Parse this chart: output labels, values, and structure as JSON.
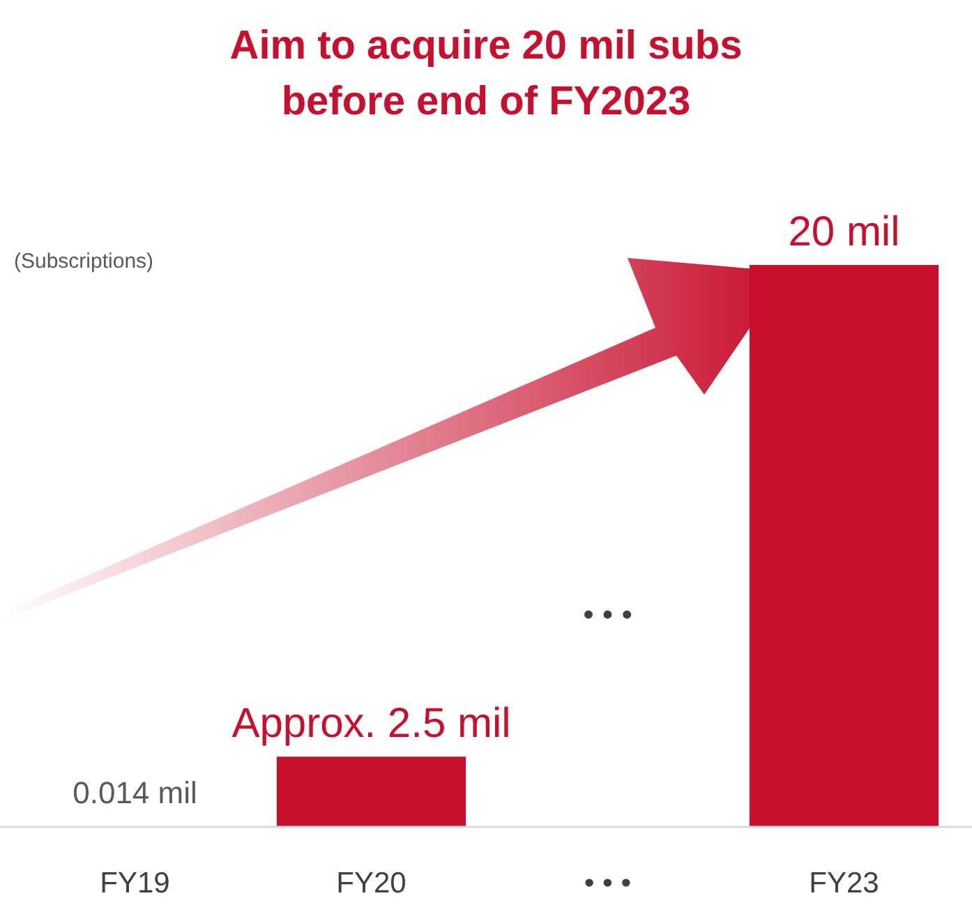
{
  "chart_data": {
    "type": "bar",
    "title": "Aim to acquire 20 mil subs\nbefore end of FY2023",
    "ylabel": "(Subscriptions)",
    "categories": [
      "FY19",
      "FY20",
      "• • •",
      "FY23"
    ],
    "values": [
      0.014,
      2.5,
      null,
      20
    ],
    "colors": [
      "#a6a6a6",
      "#c8102e",
      null,
      "#c8102e"
    ],
    "value_labels": [
      "0.014 mil",
      "Approx. 2.5 mil",
      null,
      "20 mil"
    ],
    "annotations": [
      "• • •"
    ]
  }
}
